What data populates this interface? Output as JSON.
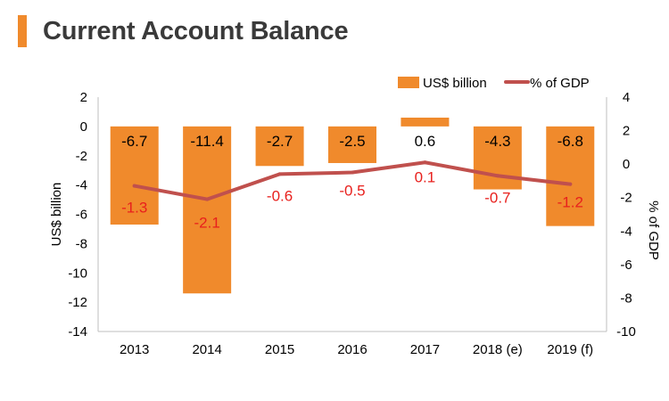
{
  "header": {
    "title": "Current Account Balance"
  },
  "chart_data": {
    "type": "bar",
    "categories": [
      "2013",
      "2014",
      "2015",
      "2016",
      "2017",
      "2018 (e)",
      "2019 (f)"
    ],
    "series": [
      {
        "name": "US$ billion",
        "type": "bar",
        "axis": "left",
        "color": "#f08a2c",
        "values": [
          -6.7,
          -11.4,
          -2.7,
          -2.5,
          0.6,
          -4.3,
          -6.8
        ],
        "labels": [
          "-6.7",
          "-11.4",
          "-2.7",
          "-2.5",
          "0.6",
          "-4.3",
          "-6.8"
        ]
      },
      {
        "name": "% of GDP",
        "type": "line",
        "axis": "right",
        "color": "#c0504d",
        "values": [
          -1.3,
          -2.1,
          -0.6,
          -0.5,
          0.1,
          -0.7,
          -1.2
        ],
        "labels": [
          "-1.3",
          "-2.1",
          "-0.6",
          "-0.5",
          "0.1",
          "-0.7",
          "-1.2"
        ]
      }
    ],
    "y_left": {
      "label": "US$ billion",
      "ylim": [
        -14,
        2
      ],
      "ticks": [
        2,
        0,
        -2,
        -4,
        -6,
        -8,
        -10,
        -12,
        -14
      ],
      "tick_labels": [
        "2",
        "0",
        "-2",
        "-4",
        "-6",
        "-8",
        "-10",
        "-12",
        "-14"
      ]
    },
    "y_right": {
      "label": "% of GDP",
      "ylim": [
        -10,
        4
      ],
      "ticks": [
        4,
        2,
        0,
        -2,
        -4,
        -6,
        -8,
        -10
      ],
      "tick_labels": [
        "4",
        "2",
        "0",
        "-2",
        "-4",
        "-6",
        "-8",
        "-10"
      ]
    },
    "legend": {
      "placement": "top-right",
      "items": [
        "US$ billion",
        "% of GDP"
      ]
    },
    "grid": false,
    "colors": {
      "bar": "#f08a2c",
      "line": "#c0504d",
      "line_label": "#e8201d",
      "title_accent": "#f08a2c"
    }
  }
}
